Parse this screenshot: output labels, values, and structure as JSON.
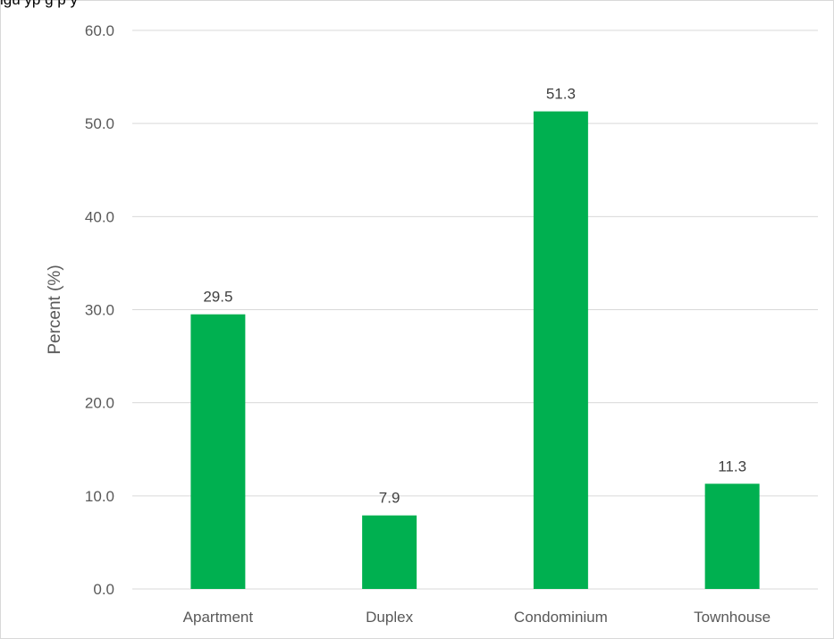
{
  "chart_data": {
    "type": "bar",
    "caption": "igu                   yp                                      g p    y",
    "categories": [
      "Apartment",
      "Duplex",
      "Condominium",
      "Townhouse"
    ],
    "values": [
      29.5,
      7.9,
      51.3,
      11.3
    ],
    "data_labels": [
      "29.5",
      "7.9",
      "51.3",
      "11.3"
    ],
    "ylabel": "Percent (%)",
    "xlabel": "",
    "ylim": [
      0,
      60
    ],
    "yticks": [
      "0.0",
      "10.0",
      "20.0",
      "30.0",
      "40.0",
      "50.0",
      "60.0"
    ],
    "grid": true,
    "legend": "none",
    "bar_color": "#00b050",
    "grid_color": "#d9d9d9"
  }
}
